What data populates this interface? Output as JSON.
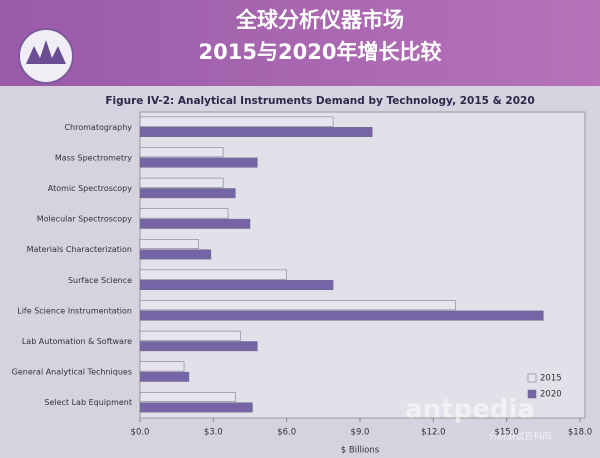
{
  "header": {
    "title_line1": "全球分析仪器市场",
    "title_line2": "2015与2020年增长比较"
  },
  "watermark": {
    "brand": "antpedia",
    "subtitle": "分析测试百科网"
  },
  "chart_data": {
    "type": "hbar",
    "title": "Figure IV-2: Analytical Instruments Demand by Technology, 2015 & 2020",
    "x_label": "$ Billions",
    "categories": [
      "Chromatography",
      "Mass Spectrometry",
      "Atomic Spectroscopy",
      "Molecular Spectroscopy",
      "Materials Characterization",
      "Surface Science",
      "Life Science Instrumentation",
      "Lab Automation & Software",
      "General Analytical Techniques",
      "Select Lab Equipment"
    ],
    "series": [
      {
        "name": "2015",
        "color": "#e6e4ef",
        "values": [
          7.9,
          3.4,
          3.4,
          3.6,
          2.4,
          6.0,
          12.9,
          4.1,
          1.8,
          3.9
        ]
      },
      {
        "name": "2020",
        "color": "#7565a6",
        "values": [
          9.5,
          4.8,
          3.9,
          4.5,
          2.9,
          7.9,
          16.5,
          4.8,
          2.0,
          4.6
        ]
      }
    ],
    "xlim": [
      0,
      18
    ],
    "xticks": [
      {
        "value": 0,
        "label": "$0.0"
      },
      {
        "value": 3,
        "label": "$3.0"
      },
      {
        "value": 6,
        "label": "$6.0"
      },
      {
        "value": 9,
        "label": "$9.0"
      },
      {
        "value": 12,
        "label": "$12.0"
      },
      {
        "value": 15,
        "label": "$15.0"
      },
      {
        "value": 18,
        "label": "$18.0"
      }
    ],
    "grid": false,
    "legend": "bottom-right"
  }
}
